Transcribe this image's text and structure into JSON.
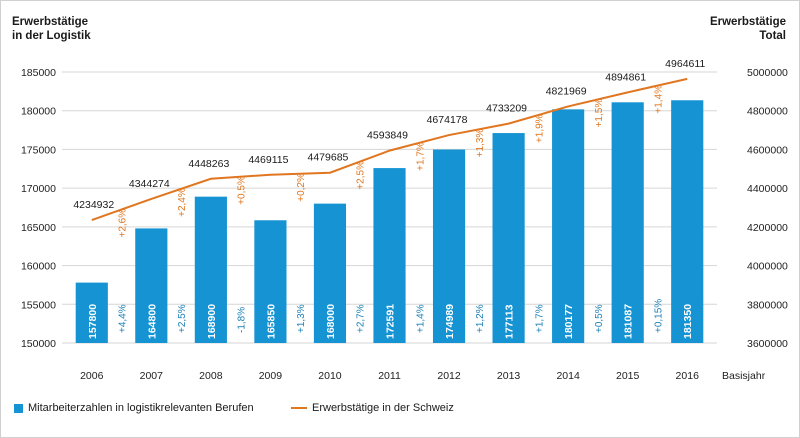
{
  "titles": {
    "left_line1": "Erwerbstätige",
    "left_line2": "in der Logistik",
    "right_line1": "Erwerbstätige",
    "right_line2": "Total"
  },
  "chart_data": {
    "type": "bar+line",
    "categories": [
      "2006",
      "2007",
      "2008",
      "2009",
      "2010",
      "2011",
      "2012",
      "2013",
      "2014",
      "2015",
      "2016"
    ],
    "x_suffix_label": "Basisjahr",
    "bars": {
      "name": "Mitarbeiterzahlen in logistikrelevanten Berufen",
      "values": [
        157800,
        164800,
        168900,
        165850,
        168000,
        172591,
        174989,
        177113,
        180177,
        181087,
        181350
      ],
      "labels": [
        "157800",
        "164800",
        "168900",
        "165850",
        "168000",
        "172591",
        "174989",
        "177113",
        "180177",
        "181087",
        "181350"
      ],
      "pct_changes": [
        "+4,4%",
        "+2,5%",
        "-1,8%",
        "+1,3%",
        "+2,7%",
        "+1,4%",
        "+1,2%",
        "+1,7%",
        "+0,5%",
        "+0,15%"
      ],
      "color": "#1593d2",
      "ylim": [
        150000,
        185000
      ],
      "yticks": [
        "150000",
        "155000",
        "160000",
        "165000",
        "170000",
        "175000",
        "180000",
        "185000"
      ]
    },
    "line": {
      "name": "Erwerbstätige in der Schweiz",
      "values": [
        4234932,
        4344274,
        4448263,
        4469115,
        4479685,
        4593849,
        4674178,
        4733209,
        4821969,
        4894861,
        4964611
      ],
      "labels": [
        "4234932",
        "4344274",
        "4448263",
        "4469115",
        "4479685",
        "4593849",
        "4674178",
        "4733209",
        "4821969",
        "4894861",
        "4964611"
      ],
      "pct_changes": [
        "+2,6%",
        "+2,4%",
        "+0,5%",
        "+0,2%",
        "+2,5%",
        "+1,7%",
        "+1,3%",
        "+1,9%",
        "+1,5%",
        "+1,4%"
      ],
      "color": "#e0761f",
      "ylim": [
        3600000,
        5000000
      ],
      "yticks": [
        "3600000",
        "3800000",
        "4000000",
        "4200000",
        "4400000",
        "4600000",
        "4800000",
        "5000000"
      ]
    },
    "grid": true,
    "legend_position": "bottom"
  }
}
